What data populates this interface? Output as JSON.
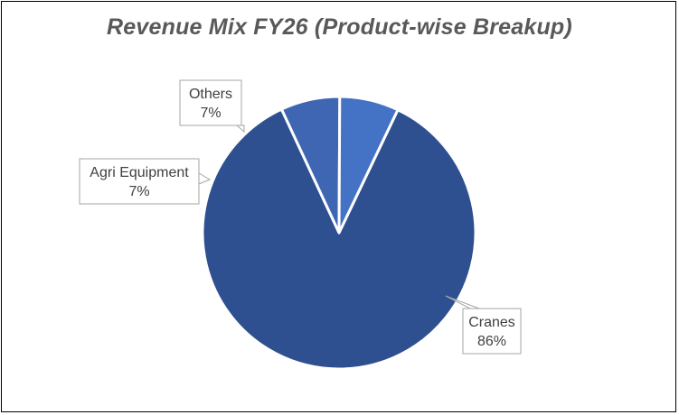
{
  "chart_data": {
    "type": "pie",
    "title": "Revenue Mix FY26 (Product-wise Breakup)",
    "slices": [
      {
        "label": "Cranes",
        "value": 86,
        "display": "86%",
        "color": "#2F5090"
      },
      {
        "label": "Agri Equipment",
        "value": 7,
        "display": "7%",
        "color": "#3F66B3"
      },
      {
        "label": "Others",
        "value": 7,
        "display": "7%",
        "color": "#4472C4"
      }
    ],
    "legend": "none",
    "data_labels": "callouts with category name and percentage"
  }
}
